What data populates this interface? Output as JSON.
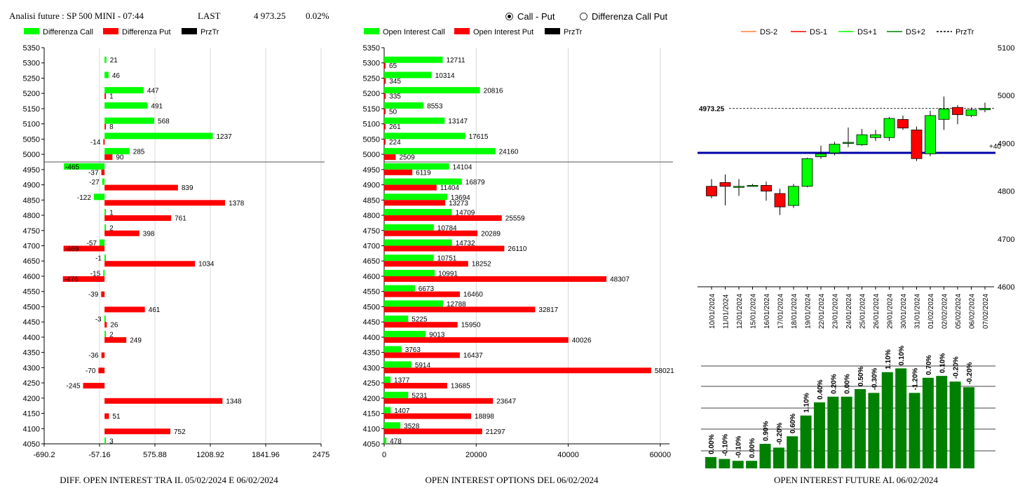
{
  "header": {
    "title": "Analisi future : SP 500 MINI - 07:44",
    "last_label": "LAST",
    "last_value": "4 973.25",
    "change": "0.02%"
  },
  "radios": [
    {
      "label": "Call - Put",
      "selected": true
    },
    {
      "label": "Differenza Call Put",
      "selected": false
    }
  ],
  "colors": {
    "call": "#00ff00",
    "put": "#ff0000",
    "dark_green": "#008000",
    "blue_line": "#0000aa"
  },
  "chart_data": [
    {
      "type": "bar",
      "name": "diff",
      "legend": [
        "Differenza Call",
        "Differenza Put",
        "PrzTr"
      ],
      "categories": [
        "5350",
        "5300",
        "5250",
        "5200",
        "5150",
        "5100",
        "5050",
        "5000",
        "4950",
        "4900",
        "4850",
        "4800",
        "4750",
        "4700",
        "4650",
        "4600",
        "4550",
        "4500",
        "4450",
        "4400",
        "4350",
        "4300",
        "4250",
        "4200",
        "4150",
        "4100",
        "4050"
      ],
      "series": [
        {
          "name": "Differenza Call",
          "values": [
            null,
            21,
            46,
            447,
            491,
            568,
            1237,
            285,
            -465,
            -27,
            -122,
            1,
            2,
            -57,
            -1,
            -15,
            null,
            null,
            -3,
            2,
            null,
            null,
            null,
            null,
            null,
            null,
            3
          ]
        },
        {
          "name": "Differenza Put",
          "values": [
            null,
            null,
            null,
            1,
            null,
            8,
            -14,
            90,
            -37,
            839,
            1378,
            761,
            398,
            -469,
            1034,
            -476,
            -39,
            461,
            26,
            249,
            -36,
            -70,
            -245,
            1348,
            51,
            752,
            null
          ]
        }
      ],
      "xticks": [
        "-690.2",
        "-57.16",
        "575.88",
        "1208.92",
        "1841.96",
        "2475"
      ],
      "xlim": [
        -690.2,
        2475
      ],
      "price_line_between": [
        "5000",
        "4950"
      ],
      "footer": "DIFF. OPEN INTEREST TRA IL 05/02/2024 E 06/02/2024"
    },
    {
      "type": "bar",
      "name": "oi",
      "legend": [
        "Open Interest Call",
        "Open Interest Put",
        "PrzTr"
      ],
      "categories": [
        "5350",
        "5300",
        "5250",
        "5200",
        "5150",
        "5100",
        "5050",
        "5000",
        "4950",
        "4900",
        "4850",
        "4800",
        "4750",
        "4700",
        "4650",
        "4600",
        "4550",
        "4500",
        "4450",
        "4400",
        "4350",
        "4300",
        "4250",
        "4200",
        "4150",
        "4100",
        "4050"
      ],
      "series": [
        {
          "name": "Open Interest Call",
          "values": [
            null,
            12711,
            10314,
            20816,
            8553,
            13147,
            17615,
            24160,
            14104,
            16879,
            13694,
            14709,
            10784,
            14732,
            10751,
            10991,
            6673,
            12788,
            5225,
            9013,
            3763,
            5914,
            1377,
            5231,
            1407,
            3528,
            478
          ]
        },
        {
          "name": "Open Interest Put",
          "values": [
            null,
            65,
            345,
            335,
            50,
            261,
            224,
            2509,
            6119,
            11404,
            13273,
            25559,
            20289,
            26110,
            18252,
            48307,
            16460,
            32817,
            15950,
            40026,
            16437,
            58021,
            13685,
            23647,
            18898,
            21297,
            null
          ]
        }
      ],
      "xticks": [
        "0",
        "20000",
        "40000",
        "60000"
      ],
      "xlim": [
        0,
        62000
      ],
      "price_line_between": [
        "5000",
        "4950"
      ],
      "footer": "OPEN INTEREST OPTIONS DEL 06/02/2024"
    },
    {
      "type": "candlestick",
      "name": "future",
      "legend": [
        "DS-2",
        "DS-1",
        "DS+1",
        "DS+2",
        "PrzTr"
      ],
      "legend_colors": [
        "#ff8040",
        "#ff0000",
        "#00ff00",
        "#008000",
        "#000000"
      ],
      "dates": [
        "10/01/2024",
        "11/01/2024",
        "12/01/2024",
        "15/01/2024",
        "16/01/2024",
        "17/01/2024",
        "18/01/2024",
        "19/01/2024",
        "22/01/2024",
        "23/01/2024",
        "24/01/2024",
        "25/01/2024",
        "26/01/2024",
        "29/01/2024",
        "30/01/2024",
        "31/01/2024",
        "01/02/2024",
        "02/02/2024",
        "05/02/2024",
        "06/02/2024",
        "07/02/2024"
      ],
      "ohlc": [
        [
          4810,
          4825,
          4785,
          4790
        ],
        [
          4818,
          4835,
          4770,
          4810
        ],
        [
          4810,
          4825,
          4790,
          4810
        ],
        [
          4812,
          4815,
          4810,
          4812
        ],
        [
          4812,
          4820,
          4780,
          4800
        ],
        [
          4795,
          4805,
          4750,
          4767
        ],
        [
          4770,
          4815,
          4765,
          4810
        ],
        [
          4810,
          4870,
          4808,
          4868
        ],
        [
          4872,
          4895,
          4868,
          4878
        ],
        [
          4880,
          4903,
          4875,
          4898
        ],
        [
          4900,
          4933,
          4892,
          4902
        ],
        [
          4897,
          4930,
          4895,
          4918
        ],
        [
          4912,
          4928,
          4905,
          4918
        ],
        [
          4912,
          4955,
          4905,
          4952
        ],
        [
          4950,
          4958,
          4928,
          4932
        ],
        [
          4928,
          4935,
          4863,
          4868
        ],
        [
          4878,
          4968,
          4873,
          4958
        ],
        [
          4950,
          4998,
          4928,
          4972
        ],
        [
          4975,
          4980,
          4940,
          4960
        ],
        [
          4958,
          4975,
          4955,
          4970
        ],
        [
          4970,
          4985,
          4965,
          4973
        ]
      ],
      "yticks": [
        "5100",
        "5000",
        "4900",
        "4800",
        "4700",
        "4600"
      ],
      "ylim": [
        4600,
        5100
      ],
      "last_label": "4973.25",
      "side_label": "+40",
      "blue_level": 4880,
      "oi_percent": [
        "0.00%",
        "-0.10%",
        "-0.10%",
        "0.00%",
        "0.90%",
        "-0.20%",
        "0.60%",
        "1.10%",
        "0.40%",
        "0.20%",
        "0.00%",
        "0.50%",
        "-0.30%",
        "1.10%",
        "0.10%",
        "-1.20%",
        "0.70%",
        "0.10%",
        "-0.20%",
        "-0.20%"
      ],
      "oi_levels": [
        6,
        5,
        4,
        4,
        13,
        11,
        17,
        28,
        35,
        38,
        38,
        42,
        40,
        51,
        53,
        40,
        48,
        49,
        46,
        43
      ],
      "footer": "OPEN INTEREST FUTURE AL 06/02/2024"
    }
  ]
}
